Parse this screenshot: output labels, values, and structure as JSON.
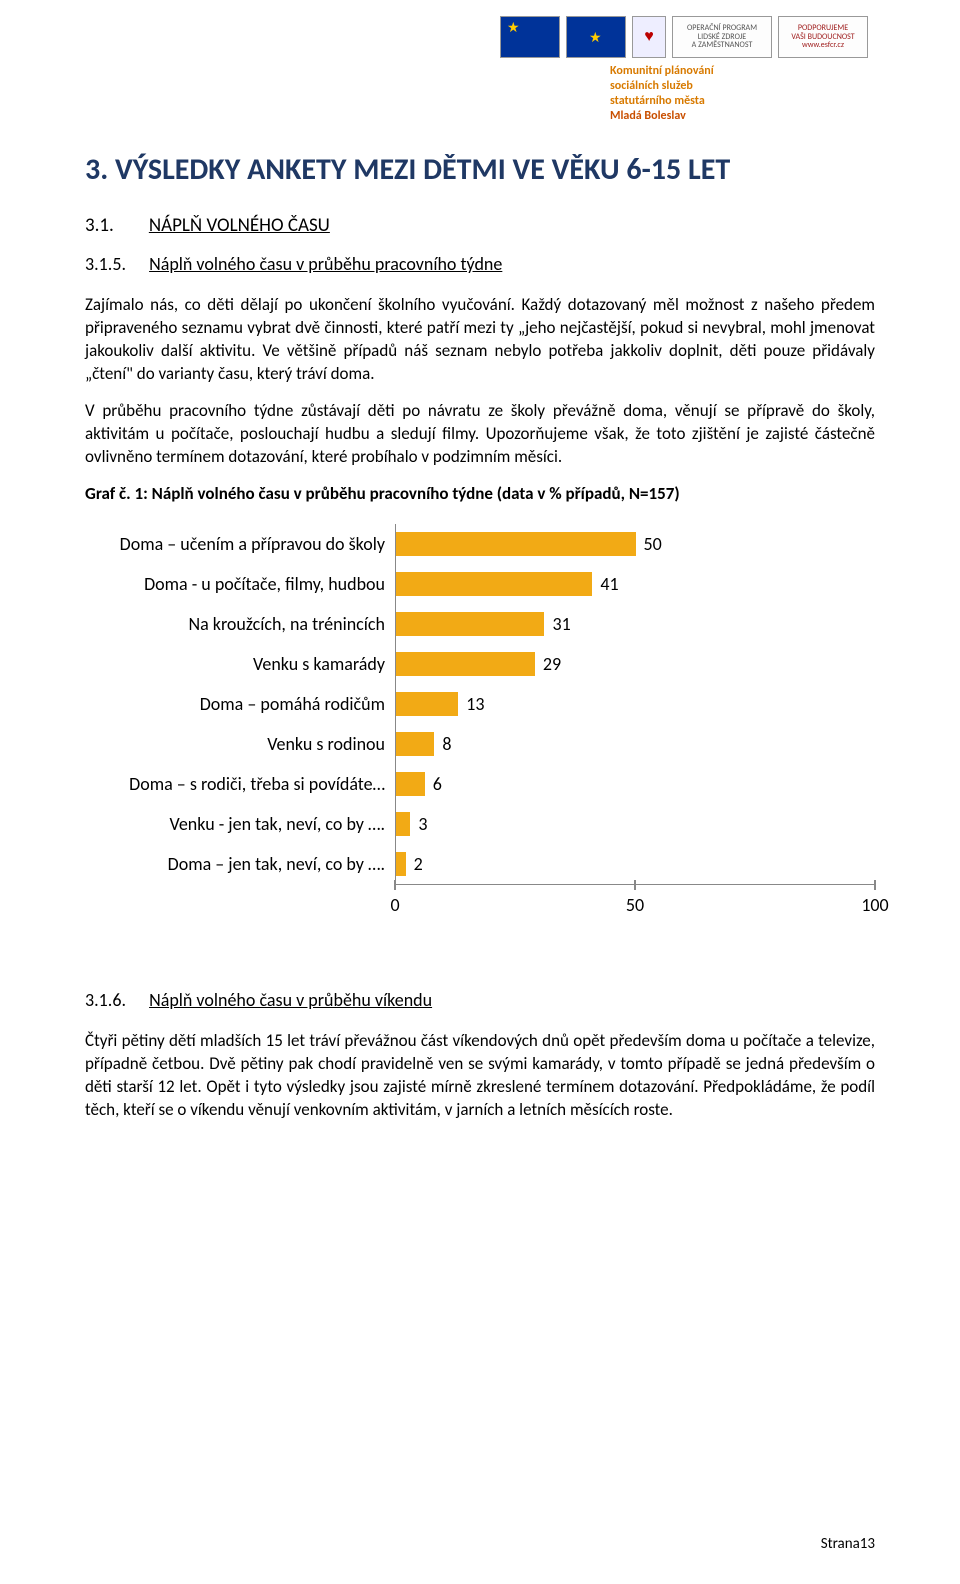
{
  "header": {
    "logos": {
      "esf": "ESF",
      "eu": "EU",
      "mpsv": "♥",
      "op_lines": "OPERAČNÍ PROGRAM\nLIDSKÉ ZDROJE\nA ZAMĚSTNANOST",
      "pod_lines": "PODPORUJEME\nVAŠI BUDOUCNOST\nwww.esfcr.cz"
    },
    "tagline1": "Komunitní plánování",
    "tagline2": "sociálních služeb",
    "tagline3": "statutárního města",
    "tagline4": "Mladá Boleslav"
  },
  "title": "3.   VÝSLEDKY ANKETY MEZI DĚTMI VE VĚKU 6-15 LET",
  "sec31_num": "3.1.",
  "sec31_txt": "NÁPLŇ VOLNÉHO ČASU",
  "sec315_num": "3.1.5.",
  "sec315_txt": "Náplň volného času v průběhu pracovního týdne",
  "para1": "Zajímalo nás, co děti dělají po ukončení školního vyučování. Každý dotazovaný měl možnost z našeho předem připraveného seznamu vybrat dvě činnosti, které patří mezi ty „jeho nejčastější, pokud si nevybral, mohl jmenovat jakoukoliv další aktivitu. Ve většině případů náš seznam nebylo potřeba jakkoliv doplnit, děti pouze přidávaly „čtení\" do varianty času, který tráví doma.",
  "para2": "V průběhu pracovního týdne zůstávají děti po návratu ze školy převážně doma, věnují se přípravě do školy, aktivitám u počítače, poslouchají hudbu a sledují filmy. Upozorňujeme však, že toto zjištění je zajisté částečně ovlivněno termínem dotazování, které probíhalo v podzimním měsíci.",
  "chart_caption": "Graf č. 1: Náplň volného času v průběhu pracovního týdne (data v % případů, N=157)",
  "chart": {
    "type": "bar-horizontal",
    "bar_color": "#f2aa15",
    "axis_color": "#888888",
    "label_fontsize": 18,
    "value_fontsize": 18,
    "xlim": [
      0,
      100
    ],
    "xticks": [
      0,
      50,
      100
    ],
    "categories": [
      "Doma – učením a přípravou do školy",
      "Doma - u počítače, filmy, hudbou",
      "Na kroužcích, na trénincích",
      "Venku s kamarády",
      "Doma – pomáhá rodičům",
      "Venku s rodinou",
      "Doma – s rodiči, třeba si povídáte…",
      "Venku - jen tak, neví, co by ….",
      "Doma –  jen tak, neví, co by …."
    ],
    "values": [
      50,
      41,
      31,
      29,
      13,
      8,
      6,
      3,
      2
    ]
  },
  "sec316_num": "3.1.6.",
  "sec316_txt": "Náplň volného času v průběhu víkendu",
  "para3": "Čtyři pětiny dětí mladších 15 let tráví převážnou část víkendových dnů opět především doma u počítače a televize, případně četbou. Dvě pětiny pak chodí pravidelně ven se svými kamarády, v tomto případě se jedná především o děti starší 12 let. Opět i tyto výsledky jsou zajisté mírně zkreslené termínem dotazování. Předpokládáme, že podíl těch, kteří se o víkendu věnují venkovním aktivitám, v jarních a letních měsících roste.",
  "footer": "Strana13"
}
